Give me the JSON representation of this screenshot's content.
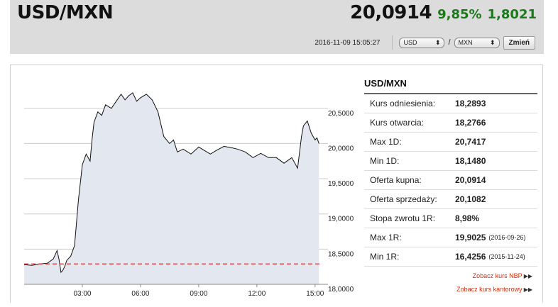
{
  "header": {
    "pair": "USD/MXN",
    "price": "20,0914",
    "change_pct": "9,85%",
    "change_abs": "1,8021",
    "timestamp": "2016-11-09 15:05:27",
    "base_currency": "USD",
    "quote_currency": "MXN",
    "separator": "/",
    "change_button": "Zmień"
  },
  "info": {
    "title": "USD/MXN",
    "rows": [
      {
        "label": "Kurs odniesienia:",
        "value": "18,2893",
        "extra": ""
      },
      {
        "label": "Kurs otwarcia:",
        "value": "18,2766",
        "extra": ""
      },
      {
        "label": "Max 1D:",
        "value": "20,7417",
        "extra": ""
      },
      {
        "label": "Min 1D:",
        "value": "18,1480",
        "extra": ""
      },
      {
        "label": "Oferta kupna:",
        "value": "20,0914",
        "extra": ""
      },
      {
        "label": "Oferta sprzedaży:",
        "value": "20,1082",
        "extra": ""
      },
      {
        "label": "Stopa zwrotu 1R:",
        "value": "8,98%",
        "extra": ""
      },
      {
        "label": "Max 1R:",
        "value": "19,9025",
        "extra": "(2016-09-26)"
      },
      {
        "label": "Min 1R:",
        "value": "16,4256",
        "extra": "(2015-11-24)"
      }
    ],
    "links": [
      "Zobacz kurs NBP",
      "Zobacz kurs kantorowy"
    ]
  },
  "colors": {
    "positive": "#1a7a1a",
    "link": "#d03010",
    "reference_line": "#d03030",
    "area_fill": "#e3e7f0"
  },
  "chart_data": {
    "type": "area",
    "title": "",
    "xlabel": "",
    "ylabel": "",
    "x_ticks": [
      "03:00",
      "06:00",
      "09:00",
      "12:00",
      "15:00"
    ],
    "y_ticks": [
      "18,0000",
      "18,5000",
      "19,0000",
      "19,5000",
      "20,0000",
      "20,5000"
    ],
    "ylim": [
      18.0,
      20.85
    ],
    "xlim": [
      0.0,
      15.3
    ],
    "reference_value": 18.2893,
    "grid": "horizontal",
    "series": [
      {
        "x": [
          0.0,
          0.4,
          0.8,
          1.2,
          1.5,
          1.7,
          1.8,
          1.9,
          2.0,
          2.1,
          2.2,
          2.4,
          2.6,
          2.8,
          3.0,
          3.2,
          3.4,
          3.5,
          3.6,
          3.8,
          4.0,
          4.2,
          4.5,
          4.8,
          5.0,
          5.2,
          5.4,
          5.6,
          5.8,
          6.0,
          6.3,
          6.6,
          6.9,
          7.2,
          7.5,
          7.7,
          7.9,
          8.2,
          8.6,
          9.0,
          9.3,
          9.6,
          9.9,
          10.3,
          10.7,
          11.0,
          11.4,
          11.8,
          12.2,
          12.6,
          13.0,
          13.4,
          13.8,
          14.1,
          14.3,
          14.4,
          14.6,
          14.8,
          15.0,
          15.1,
          15.2
        ],
        "y": [
          18.28,
          18.27,
          18.29,
          18.3,
          18.36,
          18.48,
          18.35,
          18.17,
          18.2,
          18.26,
          18.34,
          18.4,
          18.55,
          19.2,
          19.7,
          19.85,
          19.75,
          20.05,
          20.3,
          20.45,
          20.4,
          20.55,
          20.5,
          20.62,
          20.7,
          20.62,
          20.68,
          20.72,
          20.6,
          20.65,
          20.7,
          20.62,
          20.45,
          20.1,
          20.0,
          20.05,
          19.88,
          19.92,
          19.85,
          19.95,
          19.9,
          19.85,
          19.9,
          19.96,
          19.94,
          19.92,
          19.88,
          19.8,
          19.86,
          19.8,
          19.8,
          19.72,
          19.8,
          19.65,
          20.1,
          20.25,
          20.32,
          20.15,
          20.05,
          20.08,
          20.0
        ]
      }
    ]
  }
}
